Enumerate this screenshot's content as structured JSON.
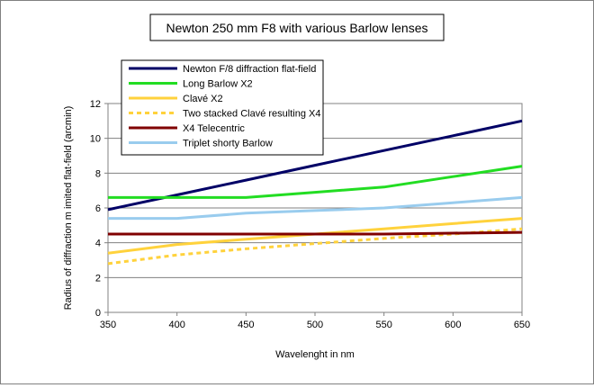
{
  "chart_data": {
    "type": "line",
    "title": "Newton 250 mm F8 with various Barlow lenses",
    "xlabel": "Wavelenght in nm",
    "ylabel": "Radius of diffraction m imited flat-field (arcmin)",
    "xlim": [
      350,
      650
    ],
    "ylim": [
      0,
      12
    ],
    "x_ticks": [
      "350",
      "400",
      "450",
      "500",
      "550",
      "600",
      "650"
    ],
    "y_ticks": [
      "0",
      "2",
      "4",
      "6",
      "8",
      "10",
      "12"
    ],
    "grid": "horizontal",
    "legend_position": "top-left",
    "x": [
      350,
      400,
      450,
      500,
      550,
      600,
      650
    ],
    "series": [
      {
        "name": "Newton F/8 diffraction flat-field",
        "color": "#000066",
        "dash": "solid",
        "values": [
          5.9,
          6.75,
          7.6,
          8.45,
          9.3,
          10.15,
          11.0
        ]
      },
      {
        "name": "Long Barlow X2",
        "color": "#22dd22",
        "dash": "solid",
        "values": [
          6.6,
          6.6,
          6.6,
          6.9,
          7.2,
          7.8,
          8.4
        ]
      },
      {
        "name": "Clavé X2",
        "color": "#ffd23c",
        "dash": "solid",
        "values": [
          3.4,
          3.9,
          4.2,
          4.5,
          4.8,
          5.1,
          5.4
        ]
      },
      {
        "name": "Two stacked Clavé resulting X4",
        "color": "#ffd23c",
        "dash": "dashed",
        "values": [
          2.8,
          3.3,
          3.65,
          3.95,
          4.25,
          4.5,
          4.8
        ]
      },
      {
        "name": "X4 Telecentric",
        "color": "#800000",
        "dash": "solid",
        "values": [
          4.5,
          4.5,
          4.5,
          4.5,
          4.5,
          4.55,
          4.6
        ]
      },
      {
        "name": "Triplet shorty Barlow",
        "color": "#99ccee",
        "dash": "solid",
        "values": [
          5.4,
          5.4,
          5.7,
          5.85,
          6.0,
          6.3,
          6.6
        ]
      }
    ]
  }
}
